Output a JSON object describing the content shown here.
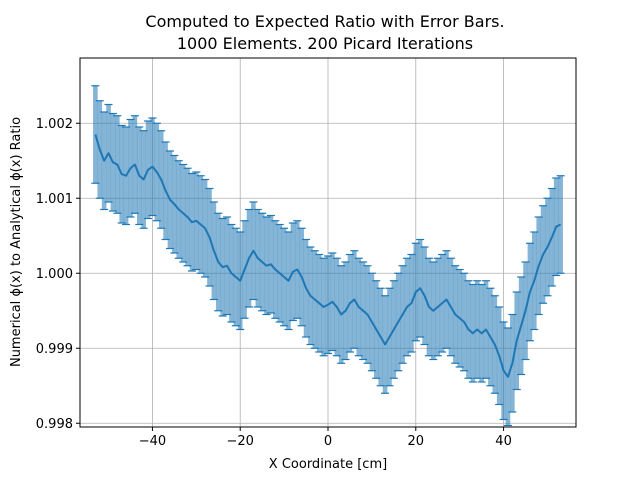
{
  "chart_data": {
    "type": "line",
    "title_lines": [
      "Computed to Expected Ratio with Error Bars.",
      "1000 Elements. 200 Picard Iterations"
    ],
    "xlabel": "X Coordinate [cm]",
    "ylabel": "Numerical ϕ(x) to Analytical ϕ(x) Ratio",
    "xlim": [
      -56.5,
      56.5
    ],
    "ylim": [
      0.99795,
      1.00287
    ],
    "xticks": [
      -40,
      -20,
      0,
      20,
      40
    ],
    "xtick_labels": [
      "−40",
      "−20",
      "0",
      "20",
      "40"
    ],
    "yticks": [
      0.998,
      0.999,
      1.0,
      1.001,
      1.002
    ],
    "ytick_labels": [
      "0.998",
      "0.999",
      "1.000",
      "1.001",
      "1.002"
    ],
    "grid": true,
    "color": "#1f77b4",
    "error_bar_half_width": 0.00065,
    "series": [
      {
        "x": [
          -53,
          -52,
          -51,
          -50,
          -49,
          -48,
          -47,
          -46,
          -45,
          -44,
          -43,
          -42,
          -41,
          -40,
          -39,
          -38,
          -37,
          -36,
          -35,
          -34,
          -33,
          -32,
          -31,
          -30,
          -29,
          -28,
          -27,
          -26,
          -25,
          -24,
          -23,
          -22,
          -21,
          -20,
          -19,
          -18,
          -17,
          -16,
          -15,
          -14,
          -13,
          -12,
          -11,
          -10,
          -9,
          -8,
          -7,
          -6,
          -5,
          -4,
          -3,
          -2,
          -1,
          0,
          1,
          2,
          3,
          4,
          5,
          6,
          7,
          8,
          9,
          10,
          11,
          12,
          13,
          14,
          15,
          16,
          17,
          18,
          19,
          20,
          21,
          22,
          23,
          24,
          25,
          26,
          27,
          28,
          29,
          30,
          31,
          32,
          33,
          34,
          35,
          36,
          37,
          38,
          39,
          40,
          41,
          42,
          43,
          44,
          45,
          46,
          47,
          48,
          49,
          50,
          51,
          52,
          53
        ],
        "y": [
          1.00185,
          1.00165,
          1.0015,
          1.0016,
          1.00148,
          1.00145,
          1.00132,
          1.0013,
          1.0014,
          1.00145,
          1.0013,
          1.00125,
          1.00138,
          1.00142,
          1.00135,
          1.00125,
          1.0011,
          1.00098,
          1.00092,
          1.00085,
          1.0008,
          1.00075,
          1.00068,
          1.0007,
          1.00065,
          1.0006,
          1.00048,
          1.0003,
          1.00015,
          1.00008,
          1.0001,
          1.0,
          0.99995,
          0.9999,
          1.00005,
          1.0002,
          1.0003,
          1.0002,
          1.00015,
          1.0001,
          1.00012,
          1.00005,
          1.0,
          0.99995,
          0.9999,
          1.00002,
          1.00005,
          0.99995,
          0.9998,
          0.9997,
          0.99965,
          0.9996,
          0.99955,
          0.99958,
          0.99962,
          0.99955,
          0.99945,
          0.9995,
          0.9996,
          0.99965,
          0.99955,
          0.9995,
          0.99945,
          0.99935,
          0.99925,
          0.99915,
          0.99905,
          0.99915,
          0.99925,
          0.99935,
          0.99945,
          0.99955,
          0.9996,
          0.99975,
          0.9998,
          0.9997,
          0.99955,
          0.9995,
          0.99955,
          0.9996,
          0.99965,
          0.99955,
          0.99945,
          0.9994,
          0.99935,
          0.99925,
          0.9992,
          0.99925,
          0.9992,
          0.99925,
          0.99915,
          0.99905,
          0.9989,
          0.9987,
          0.99862,
          0.9988,
          0.9991,
          0.9993,
          0.9995,
          0.99975,
          0.9999,
          1.0001,
          1.00025,
          1.00035,
          1.00048,
          1.00062,
          1.00065
        ]
      }
    ]
  }
}
